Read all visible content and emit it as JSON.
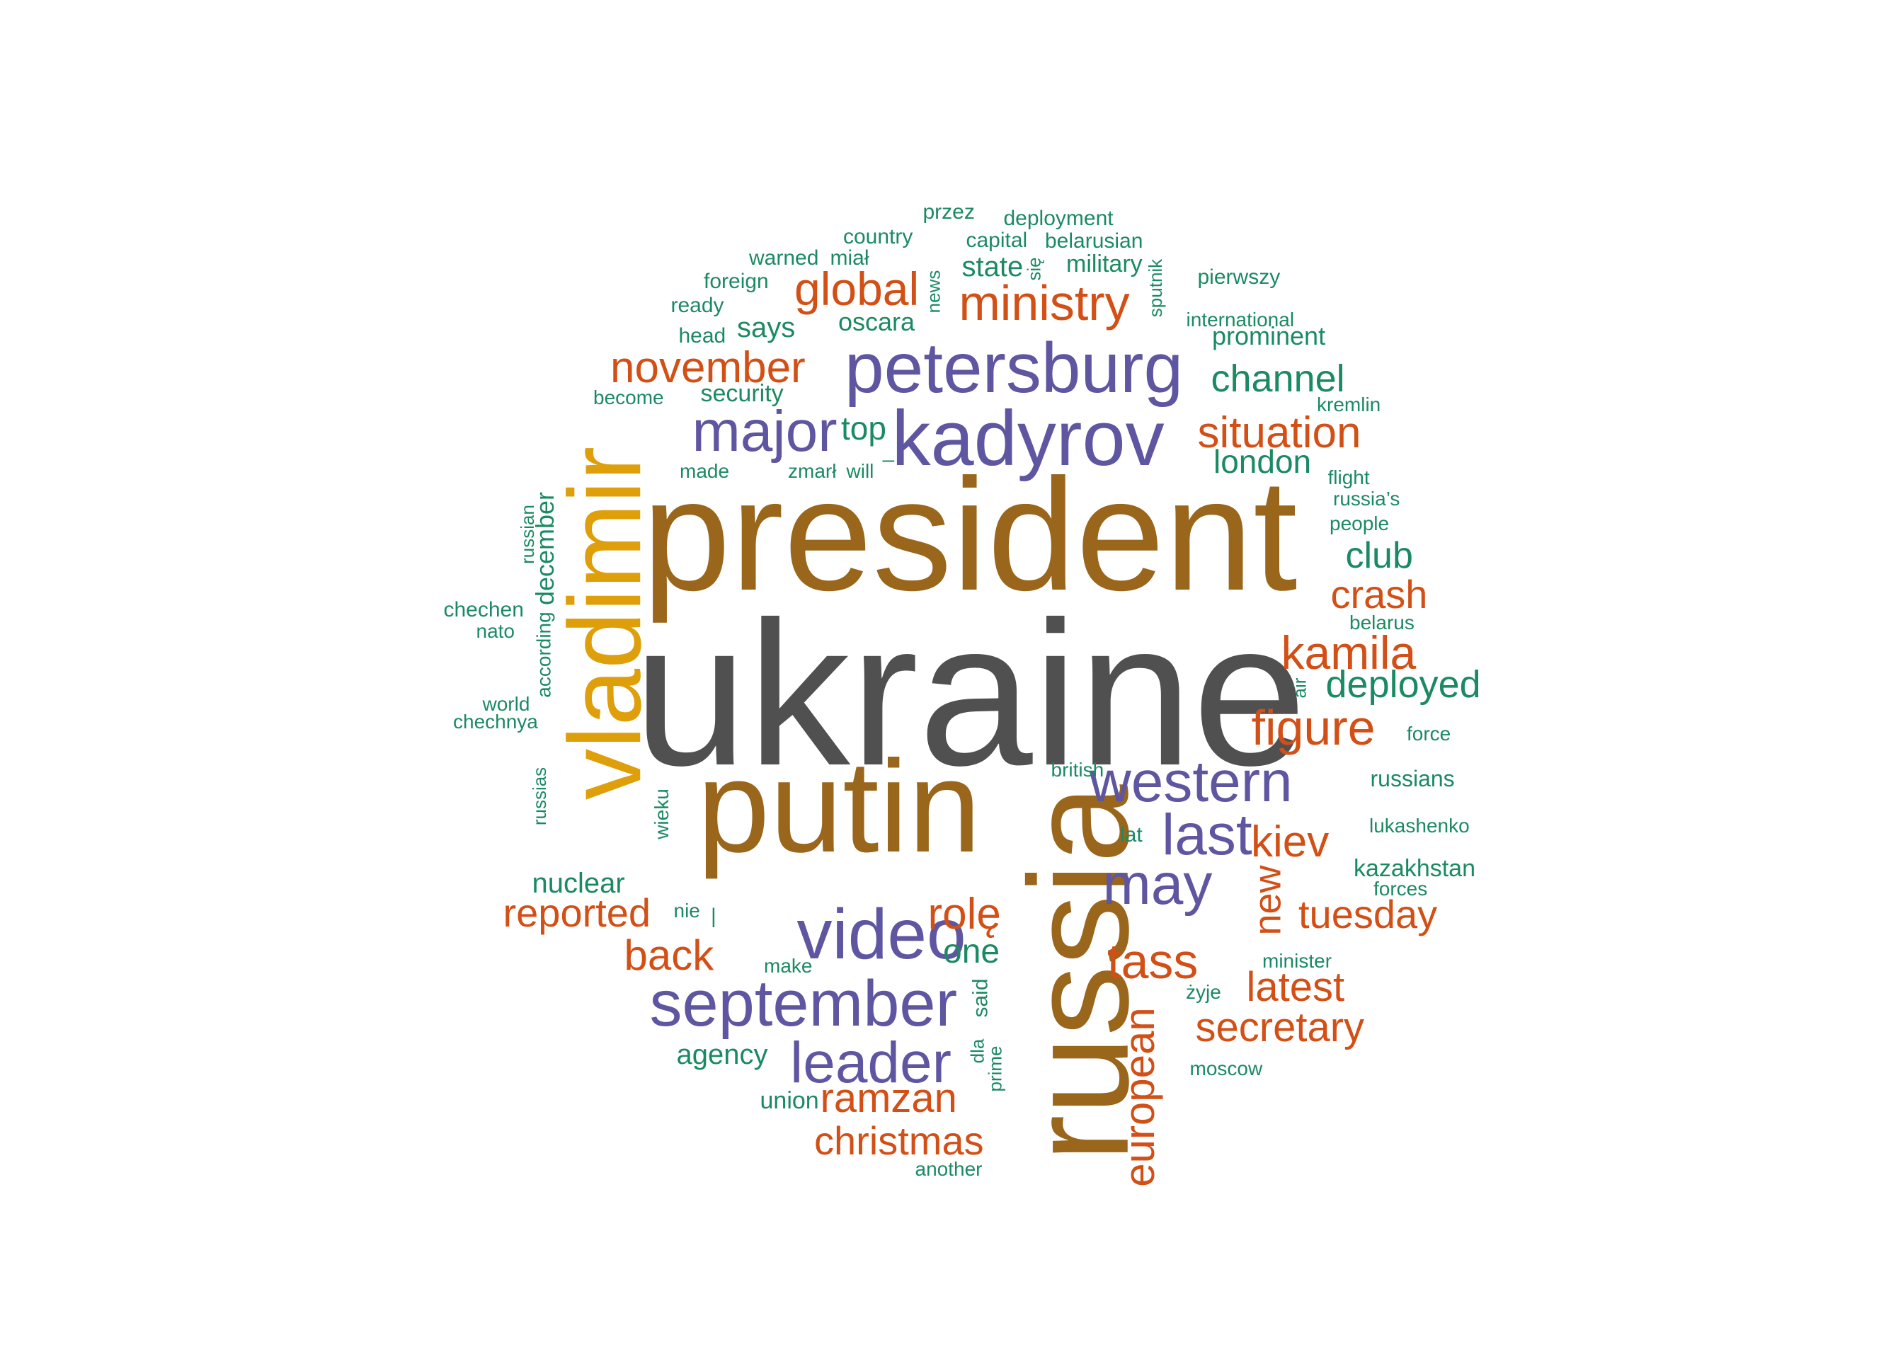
{
  "palette": {
    "gray": "#505050",
    "brown": "#99661C",
    "gold": "#DE9F0A",
    "purple": "#5E56A1",
    "orange": "#D24F16",
    "green": "#1B8A62"
  },
  "words": [
    {
      "text": "ukraine",
      "color": "gray"
    },
    {
      "text": "president",
      "color": "brown"
    },
    {
      "text": "putin",
      "color": "brown"
    },
    {
      "text": "russia",
      "color": "brown"
    },
    {
      "text": "vladimir",
      "color": "gold"
    },
    {
      "text": "kadyrov",
      "color": "purple"
    },
    {
      "text": "petersburg",
      "color": "purple"
    },
    {
      "text": "major",
      "color": "purple"
    },
    {
      "text": "western",
      "color": "purple"
    },
    {
      "text": "video",
      "color": "purple"
    },
    {
      "text": "september",
      "color": "purple"
    },
    {
      "text": "leader",
      "color": "purple"
    },
    {
      "text": "last",
      "color": "purple"
    },
    {
      "text": "may",
      "color": "purple"
    },
    {
      "text": "ministry",
      "color": "orange"
    },
    {
      "text": "global",
      "color": "orange"
    },
    {
      "text": "november",
      "color": "orange"
    },
    {
      "text": "situation",
      "color": "orange"
    },
    {
      "text": "crash",
      "color": "orange"
    },
    {
      "text": "kamila",
      "color": "orange"
    },
    {
      "text": "figure",
      "color": "orange"
    },
    {
      "text": "kiev",
      "color": "orange"
    },
    {
      "text": "tuesday",
      "color": "orange"
    },
    {
      "text": "reported",
      "color": "orange"
    },
    {
      "text": "back",
      "color": "orange"
    },
    {
      "text": "rolę",
      "color": "orange"
    },
    {
      "text": "tass",
      "color": "orange"
    },
    {
      "text": "latest",
      "color": "orange"
    },
    {
      "text": "secretary",
      "color": "orange"
    },
    {
      "text": "ramzan",
      "color": "orange"
    },
    {
      "text": "christmas",
      "color": "orange"
    },
    {
      "text": "european",
      "color": "orange"
    },
    {
      "text": "new",
      "color": "orange"
    },
    {
      "text": "channel",
      "color": "green"
    },
    {
      "text": "london",
      "color": "green"
    },
    {
      "text": "club",
      "color": "green"
    },
    {
      "text": "deployed",
      "color": "green"
    },
    {
      "text": "top",
      "color": "green"
    },
    {
      "text": "one",
      "color": "green"
    },
    {
      "text": "nuclear",
      "color": "green"
    },
    {
      "text": "agency",
      "color": "green"
    },
    {
      "text": "state",
      "color": "green"
    },
    {
      "text": "says",
      "color": "green"
    },
    {
      "text": "oscara",
      "color": "green"
    },
    {
      "text": "military",
      "color": "green"
    },
    {
      "text": "prominent",
      "color": "green"
    },
    {
      "text": "security",
      "color": "green"
    },
    {
      "text": "kazakhstan",
      "color": "green"
    },
    {
      "text": "russians",
      "color": "green"
    },
    {
      "text": "union",
      "color": "green"
    },
    {
      "text": "przez",
      "color": "green"
    },
    {
      "text": "deployment",
      "color": "green"
    },
    {
      "text": "country",
      "color": "green"
    },
    {
      "text": "capital",
      "color": "green"
    },
    {
      "text": "belarusian",
      "color": "green"
    },
    {
      "text": "warned",
      "color": "green"
    },
    {
      "text": "miał",
      "color": "green"
    },
    {
      "text": "foreign",
      "color": "green"
    },
    {
      "text": "ready",
      "color": "green"
    },
    {
      "text": "head",
      "color": "green"
    },
    {
      "text": "pierwszy",
      "color": "green"
    },
    {
      "text": "international",
      "color": "green"
    },
    {
      "text": "become",
      "color": "green"
    },
    {
      "text": "kremlin",
      "color": "green"
    },
    {
      "text": "made",
      "color": "green"
    },
    {
      "text": "zmarł",
      "color": "green"
    },
    {
      "text": "will",
      "color": "green"
    },
    {
      "text": "flight",
      "color": "green"
    },
    {
      "text": "russia’s",
      "color": "green"
    },
    {
      "text": "people",
      "color": "green"
    },
    {
      "text": "chechen",
      "color": "green"
    },
    {
      "text": "nato",
      "color": "green"
    },
    {
      "text": "belarus",
      "color": "green"
    },
    {
      "text": "world",
      "color": "green"
    },
    {
      "text": "chechnya",
      "color": "green"
    },
    {
      "text": "force",
      "color": "green"
    },
    {
      "text": "british",
      "color": "green"
    },
    {
      "text": "lat",
      "color": "green"
    },
    {
      "text": "lukashenko",
      "color": "green"
    },
    {
      "text": "forces",
      "color": "green"
    },
    {
      "text": "nie",
      "color": "green"
    },
    {
      "text": "make",
      "color": "green"
    },
    {
      "text": "minister",
      "color": "green"
    },
    {
      "text": "żyje",
      "color": "green"
    },
    {
      "text": "moscow",
      "color": "green"
    },
    {
      "text": "another",
      "color": "green"
    },
    {
      "text": "news",
      "color": "green"
    },
    {
      "text": "się",
      "color": "green"
    },
    {
      "text": "sputnik",
      "color": "green"
    },
    {
      "text": "russian",
      "color": "green"
    },
    {
      "text": "december",
      "color": "green"
    },
    {
      "text": "according",
      "color": "green"
    },
    {
      "text": "russias",
      "color": "green"
    },
    {
      "text": "wieku",
      "color": "green"
    },
    {
      "text": "air",
      "color": "green"
    },
    {
      "text": "said",
      "color": "green"
    },
    {
      "text": "dla",
      "color": "green"
    },
    {
      "text": "prime",
      "color": "green"
    },
    {
      "text": "–",
      "color": "green"
    },
    {
      "text": "|",
      "color": "green"
    }
  ]
}
